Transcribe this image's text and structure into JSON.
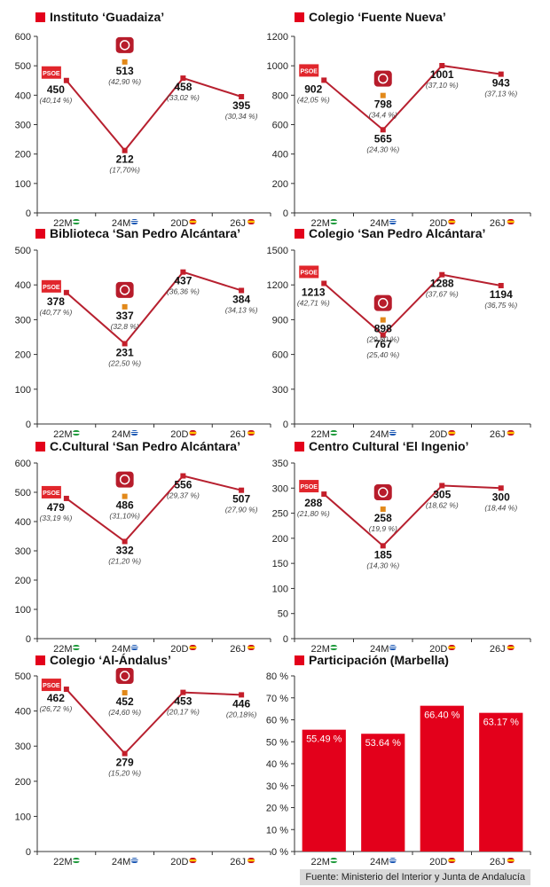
{
  "colors": {
    "line": "#b7202f",
    "marker": "#c41e2a",
    "podemos": "#e2891a",
    "podemos_badge": "#b71c2b",
    "psoe_badge": "#e1262c",
    "bar": "#e3001b",
    "title_square": "#e3001b",
    "axis": "#333333",
    "flag_andalucia": "#1f9a3c",
    "flag_spain_red": "#c60b1e",
    "flag_spain_yellow": "#ffc400",
    "flag_marbella_blue": "#1a57b3"
  },
  "psoe_label": "PSOE",
  "footer": {
    "source": "Fuente: Ministerio del Interior y Junta de Andalucía"
  },
  "chart_data": [
    {
      "type": "line",
      "title": "Instituto ‘Guadaiza’",
      "categories": [
        "22M",
        "24M",
        "20D",
        "26J"
      ],
      "flags": [
        "andalucia",
        "marbella",
        "spain",
        "spain"
      ],
      "ylim": [
        0,
        600
      ],
      "yticks": [
        0,
        100,
        200,
        300,
        400,
        500,
        600
      ],
      "series": [
        {
          "values": [
            450,
            212,
            458,
            395
          ],
          "labels": [
            "450",
            "212",
            "458",
            "395"
          ],
          "pcts": [
            "(40,14 %)",
            "(17,70%)",
            "(33,02 %)",
            "(30,34 %)"
          ]
        }
      ],
      "podemos": {
        "value": 513,
        "label": "513",
        "pct": "(42,90 %)"
      }
    },
    {
      "type": "line",
      "title": "Colegio ‘Fuente Nueva’",
      "categories": [
        "22M",
        "24M",
        "20D",
        "26J"
      ],
      "flags": [
        "andalucia",
        "marbella",
        "spain",
        "spain"
      ],
      "ylim": [
        0,
        1200
      ],
      "yticks": [
        0,
        200,
        400,
        600,
        800,
        1000,
        1200
      ],
      "series": [
        {
          "values": [
            902,
            565,
            1001,
            943
          ],
          "labels": [
            "902",
            "565",
            "1001",
            "943"
          ],
          "pcts": [
            "(42,05 %)",
            "(24,30 %)",
            "(37,10 %)",
            "(37,13 %)"
          ]
        }
      ],
      "podemos": {
        "value": 798,
        "label": "798",
        "pct": "(34,4 %)"
      }
    },
    {
      "type": "line",
      "title": "Biblioteca ‘San Pedro Alcántara’",
      "categories": [
        "22M",
        "24M",
        "20D",
        "26J"
      ],
      "flags": [
        "andalucia",
        "marbella",
        "spain",
        "spain"
      ],
      "ylim": [
        0,
        500
      ],
      "yticks": [
        0,
        100,
        200,
        300,
        400,
        500
      ],
      "series": [
        {
          "values": [
            378,
            231,
            437,
            384
          ],
          "labels": [
            "378",
            "231",
            "437",
            "384"
          ],
          "pcts": [
            "(40,77 %)",
            "(22,50 %)",
            "(36,36 %)",
            "(34,13 %)"
          ]
        }
      ],
      "podemos": {
        "value": 337,
        "label": "337",
        "pct": "(32,8 %)"
      }
    },
    {
      "type": "line",
      "title": "Colegio ‘San Pedro Alcántara’",
      "categories": [
        "22M",
        "24M",
        "20D",
        "26J"
      ],
      "flags": [
        "andalucia",
        "marbella",
        "spain",
        "spain"
      ],
      "ylim": [
        0,
        1500
      ],
      "yticks": [
        0,
        300,
        600,
        900,
        1200,
        1500
      ],
      "series": [
        {
          "values": [
            1213,
            767,
            1288,
            1194
          ],
          "labels": [
            "1213",
            "767",
            "1288",
            "1194"
          ],
          "pcts": [
            "(42,71 %)",
            "(25,40 %)",
            "(37,67 %)",
            "(36,75 %)"
          ]
        }
      ],
      "podemos": {
        "value": 898,
        "label": "898",
        "pct": "(29,80 %)"
      }
    },
    {
      "type": "line",
      "title": "C.Cultural ‘San Pedro Alcántara’",
      "categories": [
        "22M",
        "24M",
        "20D",
        "26J"
      ],
      "flags": [
        "andalucia",
        "marbella",
        "spain",
        "spain"
      ],
      "ylim": [
        0,
        600
      ],
      "yticks": [
        0,
        100,
        200,
        300,
        400,
        500,
        600
      ],
      "series": [
        {
          "values": [
            479,
            332,
            556,
            507
          ],
          "labels": [
            "479",
            "332",
            "556",
            "507"
          ],
          "pcts": [
            "(33,19 %)",
            "(21,20 %)",
            "(29,37 %)",
            "(27,90 %)"
          ]
        }
      ],
      "podemos": {
        "value": 486,
        "label": "486",
        "pct": "(31,10%)"
      }
    },
    {
      "type": "line",
      "title": "Centro Cultural ‘El Ingenio’",
      "categories": [
        "22M",
        "24M",
        "20D",
        "26J"
      ],
      "flags": [
        "andalucia",
        "marbella",
        "spain",
        "spain"
      ],
      "ylim": [
        0,
        350
      ],
      "yticks": [
        0,
        50,
        100,
        150,
        200,
        250,
        300,
        350
      ],
      "series": [
        {
          "values": [
            288,
            185,
            305,
            300
          ],
          "labels": [
            "288",
            "185",
            "305",
            "300"
          ],
          "pcts": [
            "(21,80 %)",
            "(14,30 %)",
            "(18,62 %)",
            "(18,44 %)"
          ]
        }
      ],
      "podemos": {
        "value": 258,
        "label": "258",
        "pct": "(19,9 %)"
      }
    },
    {
      "type": "line",
      "title": "Colegio ‘Al-Ándalus’",
      "categories": [
        "22M",
        "24M",
        "20D",
        "26J"
      ],
      "flags": [
        "andalucia",
        "marbella",
        "spain",
        "spain"
      ],
      "ylim": [
        0,
        500
      ],
      "yticks": [
        0,
        100,
        200,
        300,
        400,
        500
      ],
      "series": [
        {
          "values": [
            462,
            279,
            453,
            446
          ],
          "labels": [
            "462",
            "279",
            "453",
            "446"
          ],
          "pcts": [
            "(26,72 %)",
            "(15,20 %)",
            "(20,17 %)",
            "(20,18%)"
          ]
        }
      ],
      "podemos": {
        "value": 452,
        "label": "452",
        "pct": "(24,60 %)"
      }
    },
    {
      "type": "bar",
      "title": "Participación (Marbella)",
      "categories": [
        "22M",
        "24M",
        "20D",
        "26J"
      ],
      "flags": [
        "andalucia",
        "marbella",
        "spain",
        "spain"
      ],
      "ylim": [
        0,
        80
      ],
      "yticks": [
        0,
        10,
        20,
        30,
        40,
        50,
        60,
        70,
        80
      ],
      "tick_suffix": " %",
      "values": [
        55.49,
        53.64,
        66.4,
        63.17
      ],
      "labels": [
        "55.49 %",
        "53.64 %",
        "66.40 %",
        "63.17 %"
      ]
    }
  ]
}
